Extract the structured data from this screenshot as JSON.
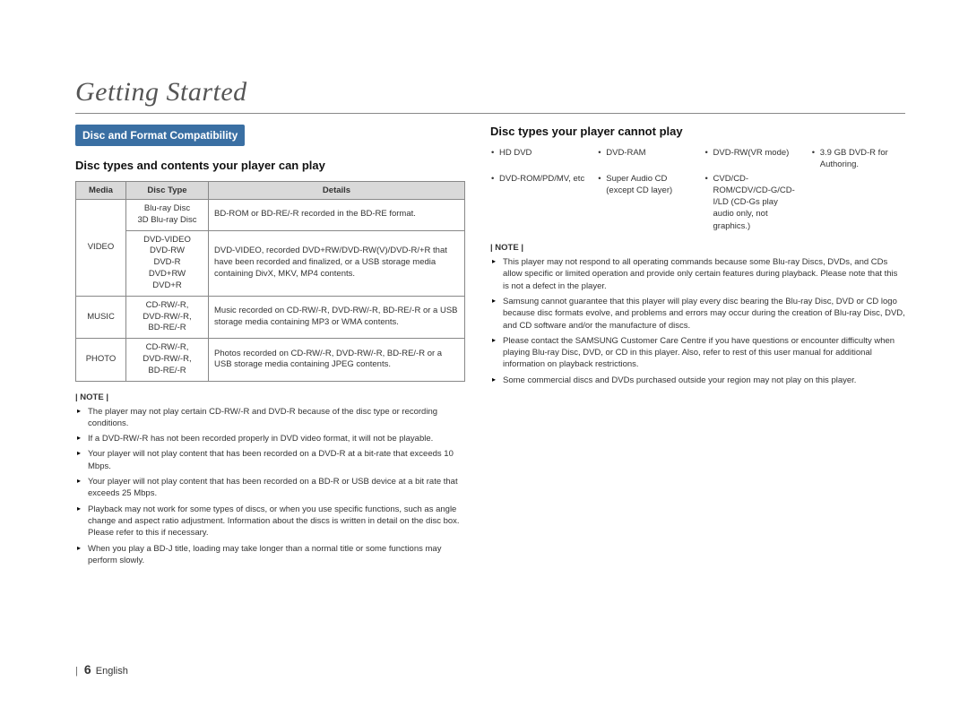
{
  "page": {
    "title": "Getting Started",
    "page_number": "6",
    "language": "English"
  },
  "section_bar": "Disc and Format Compatibility",
  "can_play": {
    "heading": "Disc types and contents your player can play",
    "headers": {
      "media": "Media",
      "disc_type": "Disc Type",
      "details": "Details"
    },
    "rows": [
      {
        "media": "VIDEO",
        "media_rowspan": 2,
        "disc_type": "Blu-ray Disc\n3D Blu-ray Disc",
        "details": "BD-ROM or BD-RE/-R recorded in the BD-RE format."
      },
      {
        "disc_type": "DVD-VIDEO\nDVD-RW\nDVD-R\nDVD+RW\nDVD+R",
        "details": "DVD-VIDEO, recorded DVD+RW/DVD-RW(V)/DVD-R/+R that have been recorded and finalized, or a USB storage media containing DivX, MKV, MP4 contents."
      },
      {
        "media": "MUSIC",
        "disc_type": "CD-RW/-R,\nDVD-RW/-R,\nBD-RE/-R",
        "details": "Music recorded on CD-RW/-R, DVD-RW/-R, BD-RE/-R or a USB storage media containing MP3 or WMA contents."
      },
      {
        "media": "PHOTO",
        "disc_type": "CD-RW/-R,\nDVD-RW/-R,\nBD-RE/-R",
        "details": "Photos recorded on CD-RW/-R, DVD-RW/-R, BD-RE/-R or a USB storage media containing JPEG contents."
      }
    ]
  },
  "note_label": "| NOTE |",
  "left_notes": [
    "The player may not play certain CD-RW/-R and DVD-R because of the disc type or recording conditions.",
    "If a DVD-RW/-R has not been recorded properly in DVD video format, it will not be playable.",
    "Your player will not play content that has been recorded on a DVD-R at a bit-rate that exceeds 10 Mbps.",
    "Your player will not play content that has been recorded on a BD-R or USB device at a bit rate that exceeds 25 Mbps.",
    "Playback may not work for some types of discs, or when you use specific functions, such as angle change and aspect ratio adjustment. Information about the discs is written in detail on the disc box. Please refer to this if necessary.",
    "When you play a BD-J title, loading may take longer than a normal title or some functions may perform slowly."
  ],
  "cannot_play": {
    "heading": "Disc types your player cannot play",
    "items": [
      "HD DVD",
      "DVD-RAM",
      "DVD-RW(VR mode)",
      "3.9 GB DVD-R for Authoring.",
      "DVD-ROM/PD/MV, etc",
      "Super Audio CD (except CD layer)",
      "CVD/CD-ROM/CDV/CD-G/CD-I/LD (CD-Gs play audio only, not graphics.)",
      ""
    ]
  },
  "right_notes": [
    "This player may not respond to all operating commands because some Blu-ray Discs, DVDs, and CDs allow specific or limited operation and provide only certain features during playback. Please note that this is not a defect in the player.",
    "Samsung cannot guarantee that this player will play every disc bearing the Blu-ray Disc, DVD or CD logo because disc formats evolve, and problems and errors may occur during the creation of Blu-ray Disc, DVD, and CD software and/or the manufacture of discs.",
    "Please contact the SAMSUNG Customer Care Centre if you have questions or encounter difficulty when playing Blu-ray Disc, DVD, or CD in this player. Also, refer to rest of this user manual for additional information on playback restrictions.",
    "Some commercial discs and DVDs purchased outside your region may not play on this player."
  ],
  "colors": {
    "bar_bg": "#3a6fa3",
    "bar_text": "#ffffff",
    "th_bg": "#d9d9d9",
    "border": "#888888",
    "title_color": "#555555"
  }
}
